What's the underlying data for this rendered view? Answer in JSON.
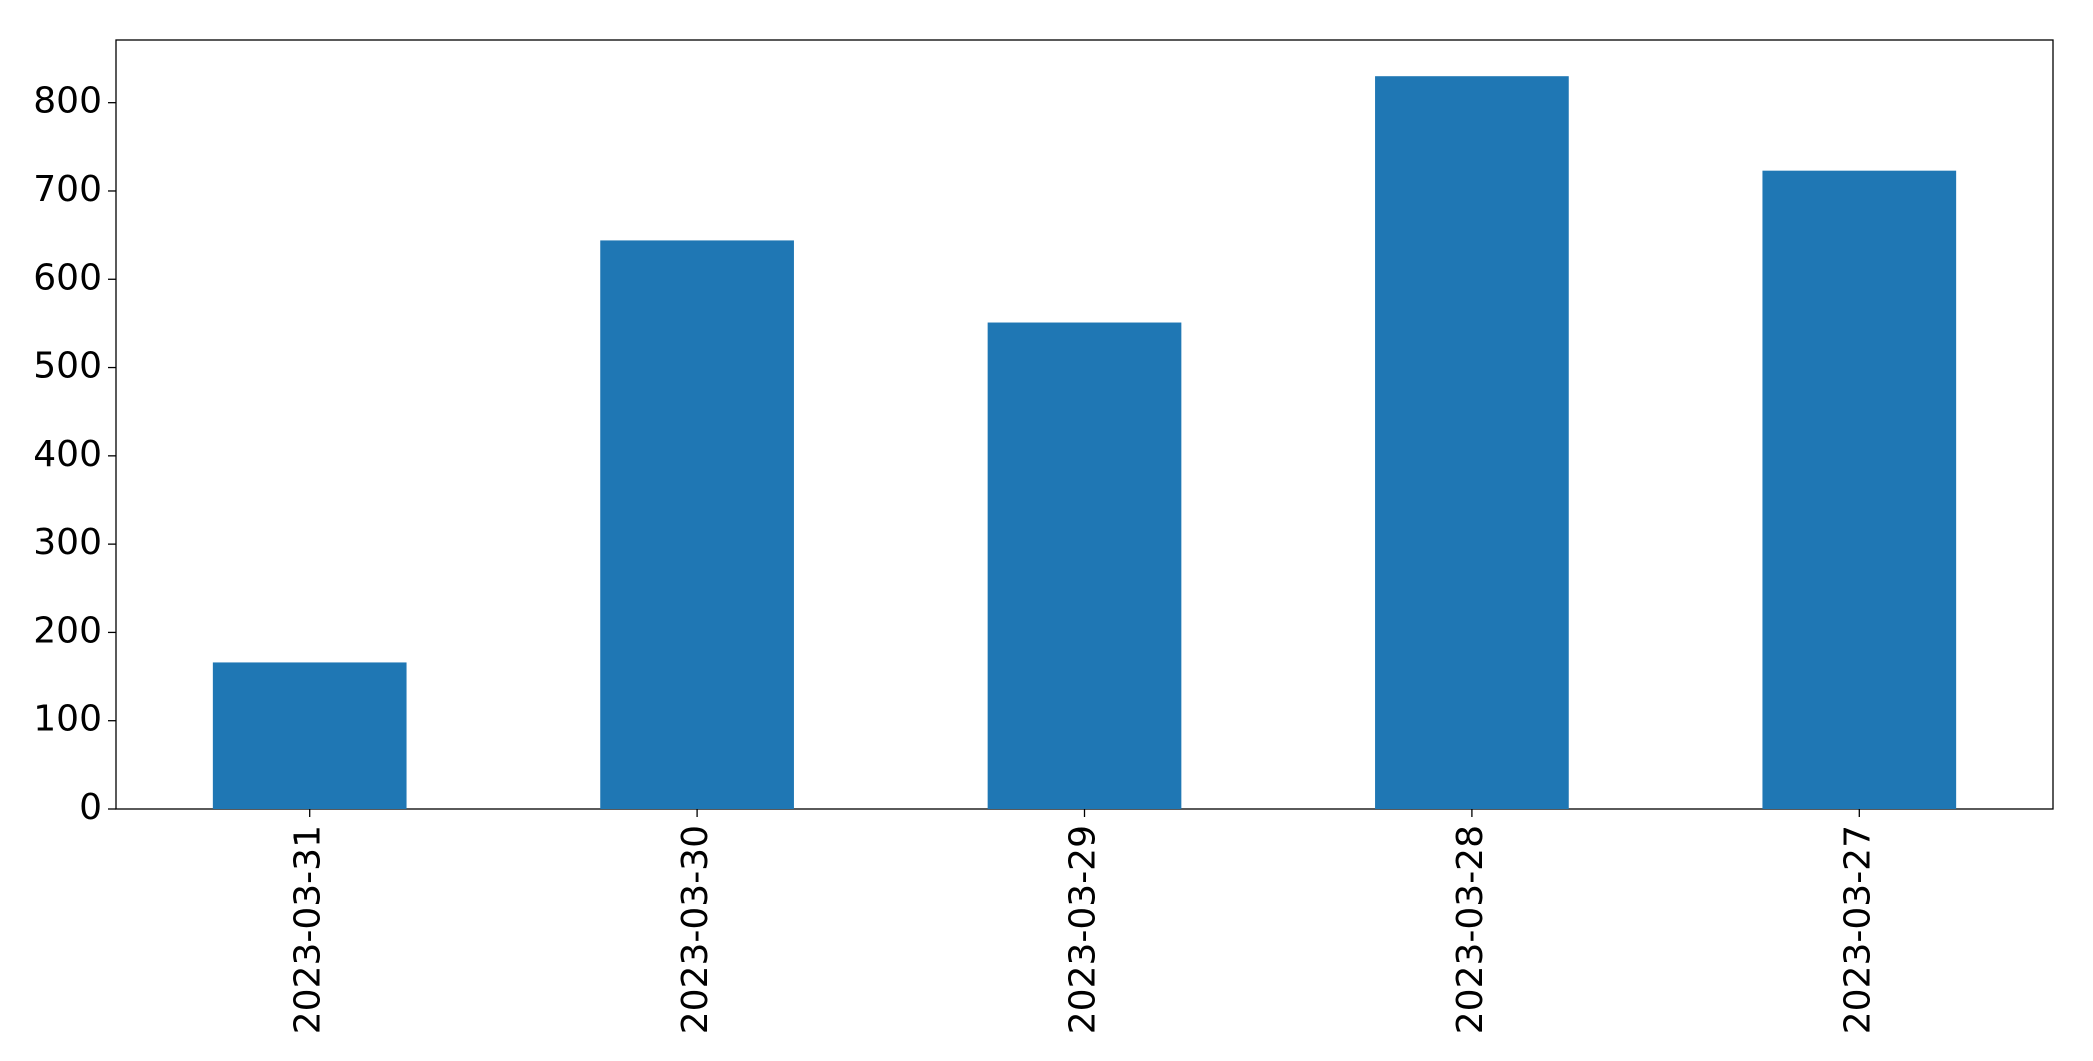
{
  "chart_data": {
    "type": "bar",
    "categories": [
      "2023-03-31",
      "2023-03-30",
      "2023-03-29",
      "2023-03-28",
      "2023-03-27"
    ],
    "values": [
      166,
      644,
      551,
      830,
      723
    ],
    "color": "#1f77b4",
    "ylim": [
      0,
      871
    ],
    "yticks": [
      0,
      100,
      200,
      300,
      400,
      500,
      600,
      700,
      800
    ],
    "grid": false
  }
}
